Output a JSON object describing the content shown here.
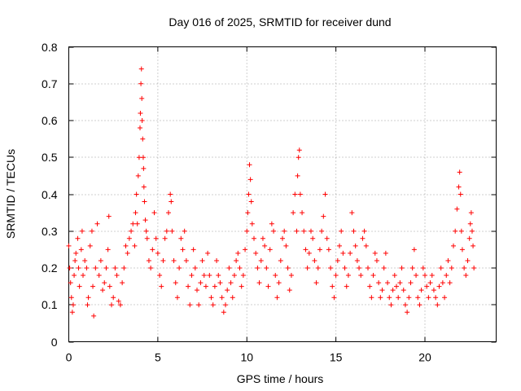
{
  "chart_data": {
    "type": "scatter",
    "title": "Day 016 of 2025, SRMTID for receiver dund",
    "xlabel": "GPS time / hours",
    "ylabel": "SRMTID / TECUs",
    "xlim": [
      0,
      24
    ],
    "ylim": [
      0,
      0.8
    ],
    "xticks": [
      0,
      5,
      10,
      15,
      20
    ],
    "xtick_labels": [
      "0",
      "5",
      "10",
      "15",
      "20"
    ],
    "yticks": [
      0,
      0.1,
      0.2,
      0.3,
      0.4,
      0.5,
      0.6,
      0.7,
      0.8
    ],
    "ytick_labels": [
      "0",
      "0.1",
      "0.2",
      "0.3",
      "0.4",
      "0.5",
      "0.6",
      "0.7",
      "0.8"
    ],
    "grid": true,
    "marker": "+",
    "marker_color": "#ff0000",
    "series": [
      {
        "name": "SRMTID",
        "x": [
          0.0,
          0.05,
          0.1,
          0.15,
          0.2,
          0.25,
          0.3,
          0.35,
          0.4,
          0.5,
          0.55,
          0.6,
          0.7,
          0.75,
          0.8,
          0.9,
          1.0,
          1.05,
          1.1,
          1.2,
          1.3,
          1.35,
          1.4,
          1.5,
          1.6,
          1.7,
          1.8,
          1.9,
          2.0,
          2.1,
          2.2,
          2.25,
          2.3,
          2.4,
          2.5,
          2.6,
          2.7,
          2.8,
          2.9,
          3.0,
          3.1,
          3.2,
          3.3,
          3.4,
          3.5,
          3.6,
          3.7,
          3.75,
          3.8,
          3.85,
          3.9,
          3.95,
          4.0,
          4.02,
          4.05,
          4.08,
          4.1,
          4.12,
          4.15,
          4.18,
          4.2,
          4.22,
          4.25,
          4.3,
          4.35,
          4.4,
          4.5,
          4.6,
          4.7,
          4.8,
          4.9,
          5.0,
          5.1,
          5.2,
          5.3,
          5.4,
          5.5,
          5.6,
          5.7,
          5.75,
          5.8,
          5.9,
          6.0,
          6.1,
          6.2,
          6.3,
          6.4,
          6.5,
          6.6,
          6.7,
          6.8,
          6.9,
          7.0,
          7.1,
          7.2,
          7.3,
          7.4,
          7.5,
          7.6,
          7.7,
          7.8,
          7.9,
          8.0,
          8.1,
          8.2,
          8.3,
          8.4,
          8.5,
          8.6,
          8.7,
          8.8,
          8.9,
          9.0,
          9.1,
          9.2,
          9.3,
          9.4,
          9.5,
          9.6,
          9.7,
          9.8,
          9.9,
          10.0,
          10.05,
          10.1,
          10.15,
          10.2,
          10.25,
          10.3,
          10.4,
          10.5,
          10.6,
          10.7,
          10.8,
          10.9,
          11.0,
          11.1,
          11.2,
          11.3,
          11.4,
          11.5,
          11.6,
          11.7,
          11.8,
          11.9,
          12.0,
          12.1,
          12.2,
          12.3,
          12.4,
          12.5,
          12.6,
          12.7,
          12.8,
          12.85,
          12.9,
          12.95,
          13.0,
          13.1,
          13.2,
          13.3,
          13.4,
          13.5,
          13.6,
          13.7,
          13.8,
          13.9,
          14.0,
          14.1,
          14.2,
          14.3,
          14.4,
          14.5,
          14.6,
          14.7,
          14.8,
          14.9,
          15.0,
          15.1,
          15.2,
          15.3,
          15.4,
          15.5,
          15.6,
          15.7,
          15.8,
          15.9,
          16.0,
          16.1,
          16.2,
          16.3,
          16.4,
          16.5,
          16.6,
          16.7,
          16.8,
          16.9,
          17.0,
          17.1,
          17.2,
          17.3,
          17.4,
          17.5,
          17.6,
          17.7,
          17.8,
          17.9,
          18.0,
          18.1,
          18.2,
          18.3,
          18.4,
          18.5,
          18.6,
          18.7,
          18.8,
          18.9,
          19.0,
          19.1,
          19.2,
          19.3,
          19.4,
          19.5,
          19.6,
          19.7,
          19.8,
          19.9,
          20.0,
          20.1,
          20.2,
          20.3,
          20.4,
          20.5,
          20.6,
          20.7,
          20.8,
          20.9,
          21.0,
          21.1,
          21.2,
          21.3,
          21.4,
          21.5,
          21.6,
          21.7,
          21.8,
          21.9,
          21.95,
          22.0,
          22.05,
          22.1,
          22.2,
          22.3,
          22.4,
          22.5,
          22.55,
          22.6,
          22.65,
          22.7,
          22.75
        ],
        "y": [
          0.26,
          0.2,
          0.16,
          0.12,
          0.08,
          0.1,
          0.18,
          0.22,
          0.24,
          0.28,
          0.2,
          0.15,
          0.25,
          0.3,
          0.18,
          0.22,
          0.2,
          0.1,
          0.12,
          0.26,
          0.3,
          0.15,
          0.07,
          0.2,
          0.32,
          0.18,
          0.22,
          0.14,
          0.16,
          0.2,
          0.25,
          0.34,
          0.15,
          0.1,
          0.12,
          0.2,
          0.18,
          0.11,
          0.1,
          0.16,
          0.2,
          0.26,
          0.24,
          0.28,
          0.3,
          0.32,
          0.26,
          0.35,
          0.4,
          0.32,
          0.45,
          0.5,
          0.58,
          0.62,
          0.7,
          0.74,
          0.66,
          0.6,
          0.55,
          0.5,
          0.47,
          0.42,
          0.38,
          0.33,
          0.3,
          0.28,
          0.22,
          0.2,
          0.25,
          0.35,
          0.28,
          0.24,
          0.18,
          0.15,
          0.22,
          0.28,
          0.3,
          0.35,
          0.4,
          0.38,
          0.3,
          0.22,
          0.16,
          0.12,
          0.2,
          0.28,
          0.25,
          0.3,
          0.22,
          0.15,
          0.1,
          0.18,
          0.25,
          0.2,
          0.14,
          0.1,
          0.16,
          0.22,
          0.18,
          0.15,
          0.24,
          0.18,
          0.12,
          0.1,
          0.15,
          0.22,
          0.18,
          0.16,
          0.12,
          0.08,
          0.1,
          0.14,
          0.2,
          0.16,
          0.12,
          0.18,
          0.22,
          0.24,
          0.2,
          0.15,
          0.18,
          0.25,
          0.3,
          0.35,
          0.4,
          0.48,
          0.44,
          0.38,
          0.32,
          0.28,
          0.24,
          0.2,
          0.16,
          0.22,
          0.28,
          0.26,
          0.2,
          0.15,
          0.25,
          0.32,
          0.3,
          0.18,
          0.12,
          0.16,
          0.22,
          0.28,
          0.3,
          0.26,
          0.2,
          0.14,
          0.18,
          0.35,
          0.4,
          0.3,
          0.45,
          0.5,
          0.52,
          0.4,
          0.35,
          0.3,
          0.25,
          0.2,
          0.24,
          0.3,
          0.28,
          0.22,
          0.16,
          0.2,
          0.25,
          0.3,
          0.34,
          0.4,
          0.28,
          0.25,
          0.2,
          0.15,
          0.12,
          0.18,
          0.22,
          0.26,
          0.3,
          0.24,
          0.2,
          0.15,
          0.18,
          0.24,
          0.35,
          0.3,
          0.26,
          0.22,
          0.2,
          0.18,
          0.28,
          0.3,
          0.26,
          0.2,
          0.15,
          0.12,
          0.18,
          0.24,
          0.22,
          0.16,
          0.12,
          0.14,
          0.2,
          0.24,
          0.16,
          0.12,
          0.1,
          0.14,
          0.18,
          0.15,
          0.12,
          0.16,
          0.2,
          0.14,
          0.1,
          0.08,
          0.12,
          0.16,
          0.2,
          0.25,
          0.18,
          0.12,
          0.1,
          0.14,
          0.2,
          0.18,
          0.15,
          0.12,
          0.16,
          0.18,
          0.14,
          0.12,
          0.1,
          0.15,
          0.2,
          0.16,
          0.12,
          0.18,
          0.22,
          0.16,
          0.2,
          0.26,
          0.3,
          0.36,
          0.42,
          0.46,
          0.4,
          0.3,
          0.25,
          0.2,
          0.18,
          0.22,
          0.28,
          0.32,
          0.35,
          0.3,
          0.26,
          0.2
        ]
      }
    ]
  }
}
